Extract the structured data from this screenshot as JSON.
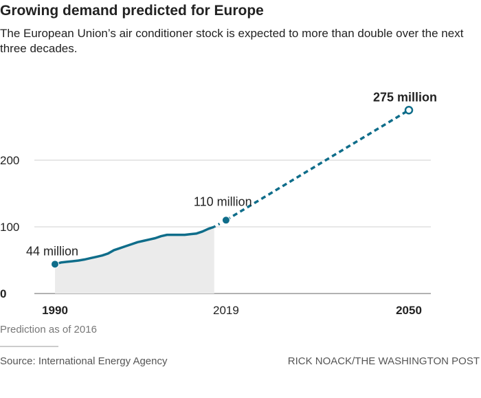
{
  "title": "Growing demand predicted for Europe",
  "subtitle": "The European Union’s air conditioner stock is expected to more than double over the next three decades.",
  "note": "Prediction as of 2016",
  "source": "Source: International Energy Agency",
  "credit": "RICK NOACK/THE WASHINGTON POST",
  "colors": {
    "line": "#0f6d8a",
    "area": "#ebebeb",
    "grid": "#cfcfcf"
  },
  "chart_data": {
    "type": "line",
    "ylim": [
      0,
      290
    ],
    "xlim": [
      1990,
      2050
    ],
    "grid": true,
    "yticks": [
      "0",
      "100",
      "200"
    ],
    "xticks": [
      "1990",
      "2019",
      "2050"
    ],
    "historical": {
      "x": [
        1990,
        1991,
        1992,
        1993,
        1994,
        1995,
        1996,
        1997,
        1998,
        1999,
        2000,
        2001,
        2002,
        2003,
        2004,
        2005,
        2006,
        2007,
        2008,
        2009,
        2010,
        2011,
        2012,
        2013,
        2014,
        2015,
        2016,
        2017
      ],
      "y": [
        44,
        46.5,
        47.5,
        48.5,
        49.5,
        51,
        53,
        55,
        57,
        60,
        65,
        68,
        71,
        74,
        77,
        79,
        81,
        83,
        86,
        88,
        88,
        88,
        88,
        89,
        90,
        93,
        97,
        100
      ]
    },
    "projection": {
      "x": [
        2017,
        2019,
        2050
      ],
      "y": [
        100,
        110,
        275
      ]
    },
    "annotations": [
      {
        "x": 1990,
        "y": 44,
        "label": "44 million"
      },
      {
        "x": 2019,
        "y": 110,
        "label": "110 million"
      },
      {
        "x": 2050,
        "y": 275,
        "label": "275 million"
      }
    ]
  }
}
